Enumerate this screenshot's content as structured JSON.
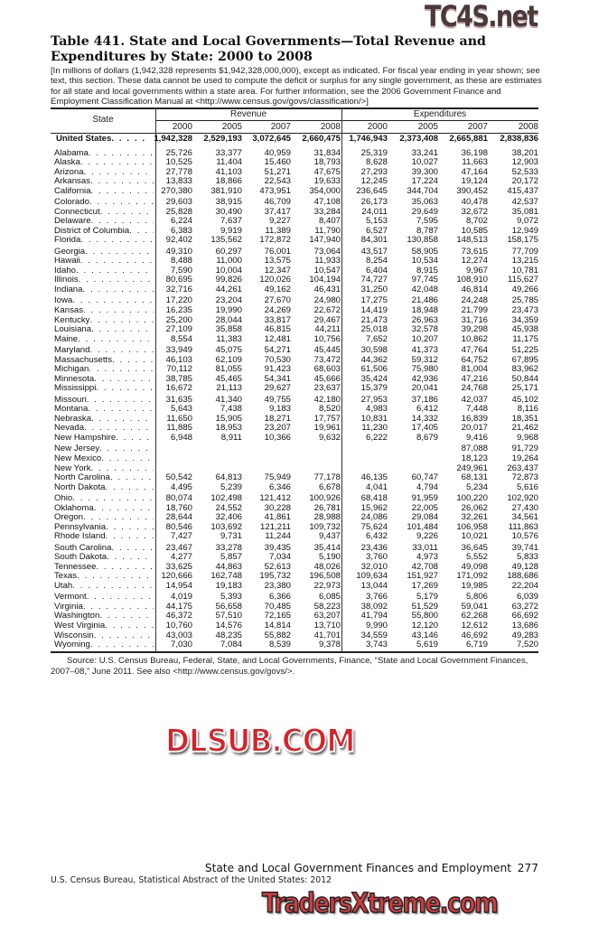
{
  "title": "Table 441. State and Local Governments—Total Revenue and Expenditures by State: 2000 to 2008",
  "headnote": "[In millions of dollars (1,942,328 represents $1,942,328,000,000), except as indicated. For fiscal year ending in year shown; see text, this section. These data cannot be used to compute the deficit or surplus for any single government, as these are estimates for all state and local governments within a state area. For further information, see the 2006 Government Finance and Employment Classification Manual at <http://www.census.gov/govs/classification/>]",
  "table": {
    "state_header": "State",
    "revenue_header": "Revenue",
    "expenditures_header": "Expenditures",
    "years": [
      "2000",
      "2005",
      "2007",
      "2008"
    ],
    "total": {
      "state": "United States",
      "revenue": [
        "1,942,328",
        "2,529,193",
        "3,072,645",
        "2,660,475"
      ],
      "expenditures": [
        "1,746,943",
        "2,373,408",
        "2,665,881",
        "2,838,836"
      ]
    },
    "rows": [
      {
        "state": "Alabama",
        "revenue": [
          "25,726",
          "33,377",
          "40,959",
          "31,834"
        ],
        "expenditures": [
          "25,319",
          "33,241",
          "36,198",
          "38,201"
        ]
      },
      {
        "state": "Alaska",
        "revenue": [
          "10,525",
          "11,404",
          "15,460",
          "18,793"
        ],
        "expenditures": [
          "8,628",
          "10,027",
          "11,663",
          "12,903"
        ]
      },
      {
        "state": "Arizona",
        "revenue": [
          "27,778",
          "41,103",
          "51,271",
          "47,675"
        ],
        "expenditures": [
          "27,293",
          "39,300",
          "47,164",
          "52,533"
        ]
      },
      {
        "state": "Arkansas",
        "revenue": [
          "13,833",
          "18,866",
          "22,543",
          "19,633"
        ],
        "expenditures": [
          "12,245",
          "17,224",
          "19,124",
          "20,172"
        ]
      },
      {
        "state": "California",
        "revenue": [
          "270,380",
          "381,910",
          "473,951",
          "354,000"
        ],
        "expenditures": [
          "236,645",
          "344,704",
          "390,452",
          "415,437"
        ]
      },
      {
        "state": "Colorado",
        "revenue": [
          "29,603",
          "38,915",
          "46,709",
          "47,108"
        ],
        "expenditures": [
          "26,173",
          "35,063",
          "40,478",
          "42,537"
        ]
      },
      {
        "state": "Connecticut",
        "revenue": [
          "25,828",
          "30,490",
          "37,417",
          "33,284"
        ],
        "expenditures": [
          "24,011",
          "29,649",
          "32,672",
          "35,081"
        ]
      },
      {
        "state": "Delaware",
        "revenue": [
          "6,224",
          "7,637",
          "9,227",
          "8,407"
        ],
        "expenditures": [
          "5,153",
          "7,595",
          "8,702",
          "9,072"
        ]
      },
      {
        "state": "District of Columbia",
        "revenue": [
          "6,383",
          "9,919",
          "11,389",
          "11,790"
        ],
        "expenditures": [
          "6,527",
          "8,787",
          "10,585",
          "12,949"
        ]
      },
      {
        "state": "Florida",
        "revenue": [
          "92,402",
          "135,562",
          "172,872",
          "147,940"
        ],
        "expenditures": [
          "84,301",
          "130,858",
          "148,513",
          "158,175"
        ]
      },
      {
        "state": "Georgia",
        "revenue": [
          "49,310",
          "60,297",
          "76,001",
          "73,064"
        ],
        "expenditures": [
          "43,517",
          "58,905",
          "73,615",
          "77,709"
        ]
      },
      {
        "state": "Hawaii",
        "revenue": [
          "8,488",
          "11,000",
          "13,575",
          "11,933"
        ],
        "expenditures": [
          "8,254",
          "10,534",
          "12,274",
          "13,215"
        ]
      },
      {
        "state": "Idaho",
        "revenue": [
          "7,590",
          "10,004",
          "12,347",
          "10,547"
        ],
        "expenditures": [
          "6,404",
          "8,915",
          "9,967",
          "10,781"
        ]
      },
      {
        "state": "Illinois",
        "revenue": [
          "80,695",
          "99,826",
          "120,026",
          "104,194"
        ],
        "expenditures": [
          "74,727",
          "97,745",
          "108,910",
          "115,627"
        ]
      },
      {
        "state": "Indiana",
        "revenue": [
          "32,716",
          "44,261",
          "49,162",
          "46,431"
        ],
        "expenditures": [
          "31,250",
          "42,048",
          "46,814",
          "49,266"
        ]
      },
      {
        "state": "Iowa",
        "revenue": [
          "17,220",
          "23,204",
          "27,670",
          "24,980"
        ],
        "expenditures": [
          "17,275",
          "21,486",
          "24,248",
          "25,785"
        ]
      },
      {
        "state": "Kansas",
        "revenue": [
          "16,235",
          "19,990",
          "24,269",
          "22,672"
        ],
        "expenditures": [
          "14,419",
          "18,948",
          "21,799",
          "23,473"
        ]
      },
      {
        "state": "Kentucky",
        "revenue": [
          "25,200",
          "28,044",
          "33,817",
          "29,467"
        ],
        "expenditures": [
          "21,473",
          "26,963",
          "31,716",
          "34,359"
        ]
      },
      {
        "state": "Louisiana",
        "revenue": [
          "27,109",
          "35,858",
          "46,815",
          "44,211"
        ],
        "expenditures": [
          "25,018",
          "32,578",
          "39,298",
          "45,938"
        ]
      },
      {
        "state": "Maine",
        "revenue": [
          "8,554",
          "11,383",
          "12,481",
          "10,756"
        ],
        "expenditures": [
          "7,652",
          "10,207",
          "10,862",
          "11,175"
        ]
      },
      {
        "state": "Maryland",
        "revenue": [
          "33,949",
          "45,075",
          "54,271",
          "45,445"
        ],
        "expenditures": [
          "30,598",
          "41,373",
          "47,764",
          "51,225"
        ]
      },
      {
        "state": "Massachusetts",
        "revenue": [
          "46,103",
          "62,109",
          "70,530",
          "73,472"
        ],
        "expenditures": [
          "44,362",
          "59,312",
          "64,752",
          "67,895"
        ]
      },
      {
        "state": "Michigan",
        "revenue": [
          "70,112",
          "81,055",
          "91,423",
          "68,603"
        ],
        "expenditures": [
          "61,506",
          "75,980",
          "81,004",
          "83,962"
        ]
      },
      {
        "state": "Minnesota",
        "revenue": [
          "38,785",
          "45,465",
          "54,341",
          "45,666"
        ],
        "expenditures": [
          "35,424",
          "42,936",
          "47,216",
          "50,844"
        ]
      },
      {
        "state": "Mississippi",
        "revenue": [
          "16,672",
          "21,113",
          "29,627",
          "23,637"
        ],
        "expenditures": [
          "15,379",
          "20,041",
          "24,768",
          "25,171"
        ]
      },
      {
        "state": "Missouri",
        "revenue": [
          "31,635",
          "41,340",
          "49,755",
          "42,180"
        ],
        "expenditures": [
          "27,953",
          "37,186",
          "42,037",
          "45,102"
        ]
      },
      {
        "state": "Montana",
        "revenue": [
          "5,643",
          "7,438",
          "9,183",
          "8,520"
        ],
        "expenditures": [
          "4,983",
          "6,412",
          "7,448",
          "8,116"
        ]
      },
      {
        "state": "Nebraska",
        "revenue": [
          "11,650",
          "15,905",
          "18,271",
          "17,757"
        ],
        "expenditures": [
          "10,831",
          "14,332",
          "16,839",
          "18,351"
        ]
      },
      {
        "state": "Nevada",
        "revenue": [
          "11,885",
          "18,953",
          "23,207",
          "19,961"
        ],
        "expenditures": [
          "11,230",
          "17,405",
          "20,017",
          "21,462"
        ]
      },
      {
        "state": "New Hampshire",
        "revenue": [
          "6,948",
          "8,911",
          "10,366",
          "9,632"
        ],
        "expenditures": [
          "6,222",
          "8,679",
          "9,416",
          "9,968"
        ]
      },
      {
        "state": "New Jersey",
        "revenue": [
          "",
          "",
          "",
          ""
        ],
        "expenditures": [
          "",
          "",
          "87,088",
          "91,729"
        ]
      },
      {
        "state": "New Mexico",
        "revenue": [
          "",
          "",
          "",
          ""
        ],
        "expenditures": [
          "",
          "",
          "18,123",
          "19,264"
        ]
      },
      {
        "state": "New York",
        "revenue": [
          "",
          "",
          "",
          ""
        ],
        "expenditures": [
          "",
          "",
          "249,961",
          "263,437"
        ]
      },
      {
        "state": "North Carolina",
        "revenue": [
          "50,542",
          "64,813",
          "75,949",
          "77,178"
        ],
        "expenditures": [
          "46,135",
          "60,747",
          "68,131",
          "72,873"
        ]
      },
      {
        "state": "North Dakota",
        "revenue": [
          "4,495",
          "5,239",
          "6,346",
          "6,678"
        ],
        "expenditures": [
          "4,041",
          "4,794",
          "5,234",
          "5,616"
        ]
      },
      {
        "state": "Ohio",
        "revenue": [
          "80,074",
          "102,498",
          "121,412",
          "100,926"
        ],
        "expenditures": [
          "68,418",
          "91,959",
          "100,220",
          "102,920"
        ]
      },
      {
        "state": "Oklahoma",
        "revenue": [
          "18,760",
          "24,552",
          "30,228",
          "26,781"
        ],
        "expenditures": [
          "15,962",
          "22,005",
          "26,062",
          "27,430"
        ]
      },
      {
        "state": "Oregon",
        "revenue": [
          "28,644",
          "32,406",
          "41,861",
          "28,988"
        ],
        "expenditures": [
          "24,086",
          "29,084",
          "32,261",
          "34,561"
        ]
      },
      {
        "state": "Pennsylvania",
        "revenue": [
          "80,546",
          "103,692",
          "121,211",
          "109,732"
        ],
        "expenditures": [
          "75,624",
          "101,484",
          "106,958",
          "111,863"
        ]
      },
      {
        "state": "Rhode Island",
        "revenue": [
          "7,427",
          "9,731",
          "11,244",
          "9,437"
        ],
        "expenditures": [
          "6,432",
          "9,226",
          "10,021",
          "10,576"
        ]
      },
      {
        "state": "South Carolina",
        "revenue": [
          "23,467",
          "33,278",
          "39,435",
          "35,414"
        ],
        "expenditures": [
          "23,436",
          "33,011",
          "36,645",
          "39,741"
        ]
      },
      {
        "state": "South Dakota",
        "revenue": [
          "4,277",
          "5,857",
          "7,034",
          "5,190"
        ],
        "expenditures": [
          "3,760",
          "4,973",
          "5,552",
          "5,833"
        ]
      },
      {
        "state": "Tennessee",
        "revenue": [
          "33,625",
          "44,863",
          "52,613",
          "48,026"
        ],
        "expenditures": [
          "32,010",
          "42,708",
          "49,098",
          "49,128"
        ]
      },
      {
        "state": "Texas",
        "revenue": [
          "120,666",
          "162,748",
          "195,732",
          "196,508"
        ],
        "expenditures": [
          "109,634",
          "151,927",
          "171,092",
          "188,686"
        ]
      },
      {
        "state": "Utah",
        "revenue": [
          "14,954",
          "19,183",
          "23,380",
          "22,973"
        ],
        "expenditures": [
          "13,044",
          "17,269",
          "19,985",
          "22,204"
        ]
      },
      {
        "state": "Vermont",
        "revenue": [
          "4,019",
          "5,393",
          "6,366",
          "6,085"
        ],
        "expenditures": [
          "3,766",
          "5,179",
          "5,806",
          "6,039"
        ]
      },
      {
        "state": "Virginia",
        "revenue": [
          "44,175",
          "56,658",
          "70,485",
          "58,223"
        ],
        "expenditures": [
          "38,092",
          "51,529",
          "59,041",
          "63,272"
        ]
      },
      {
        "state": "Washington",
        "revenue": [
          "46,372",
          "57,510",
          "72,165",
          "63,207"
        ],
        "expenditures": [
          "41,794",
          "55,800",
          "62,268",
          "66,692"
        ]
      },
      {
        "state": "West Virginia",
        "revenue": [
          "10,760",
          "14,576",
          "14,814",
          "13,710"
        ],
        "expenditures": [
          "9,990",
          "12,120",
          "12,612",
          "13,686"
        ]
      },
      {
        "state": "Wisconsin",
        "revenue": [
          "43,003",
          "48,235",
          "55,882",
          "41,701"
        ],
        "expenditures": [
          "34,559",
          "43,146",
          "46,692",
          "49,283"
        ]
      },
      {
        "state": "Wyoming",
        "revenue": [
          "7,030",
          "7,084",
          "8,539",
          "9,378"
        ],
        "expenditures": [
          "3,743",
          "5,619",
          "6,719",
          "7,520"
        ]
      }
    ]
  },
  "source": "Source: U.S. Census Bureau, Federal, State, and Local Governments, Finance, “State and Local Government Finances, 2007–08,” June 2011. See also <http://www.census.gov/govs/>.",
  "footer": {
    "section_title": "State and Local Government Finances and Employment",
    "page_number": "277",
    "publication": "U.S. Census Bureau, Statistical Abstract of the United States: 2012"
  },
  "watermarks": {
    "top": "TC4S.net",
    "middle": "DLSUB.COM",
    "bottom": "TradersXtreme.com"
  }
}
